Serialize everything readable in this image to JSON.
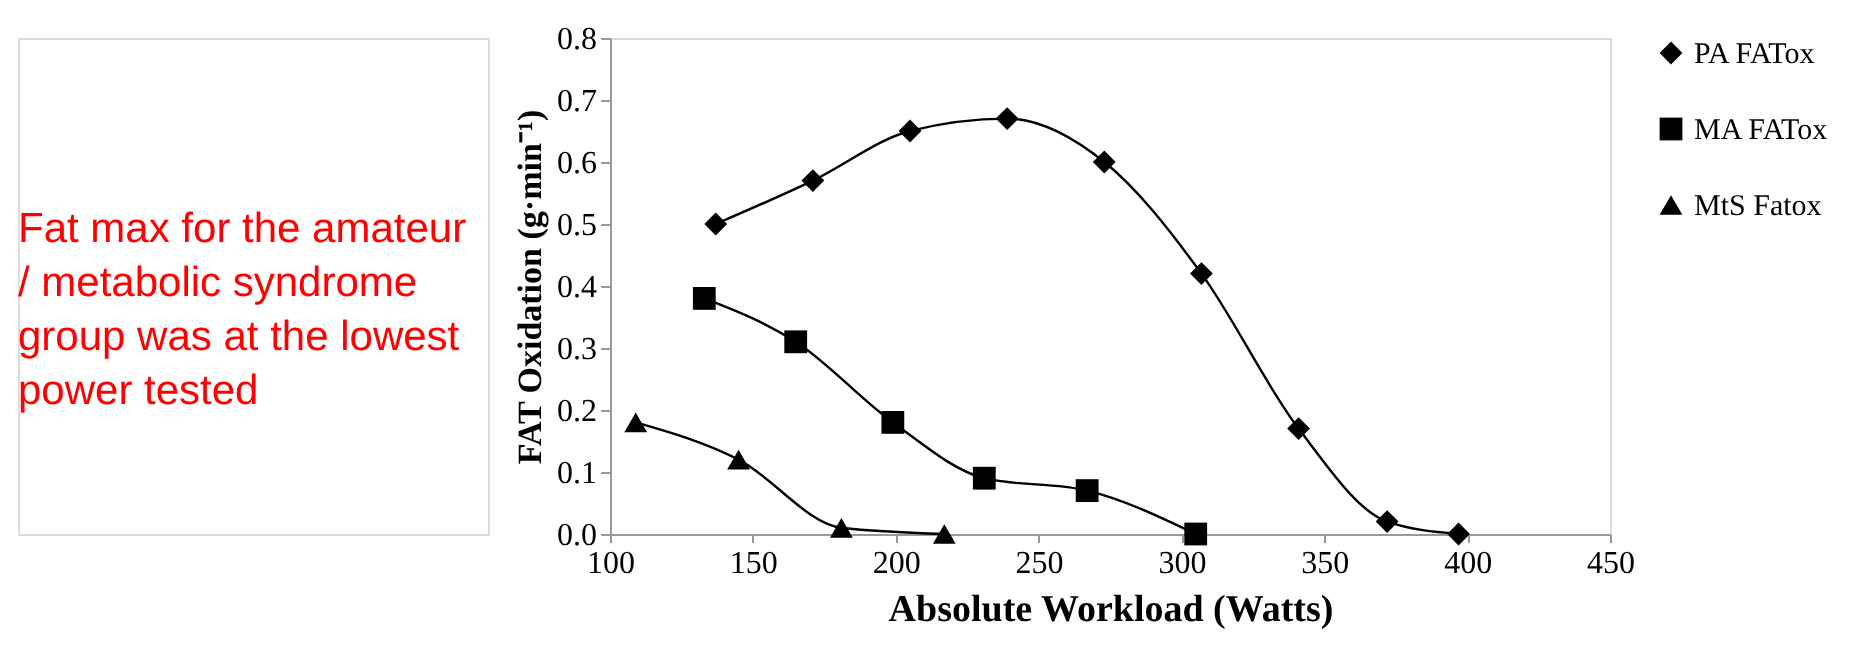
{
  "chart_data": {
    "type": "line",
    "xlabel": "Absolute Workload (Watts)",
    "ylabel": "FAT Oxidation (g·min⁻¹)",
    "annotations": [
      "Fat max for the amateur / metabolic syndrome group was at the lowest power tested"
    ],
    "series": [
      {
        "name": "PA FATox",
        "color": "#000000",
        "marker": "diamond",
        "x": [
          137,
          171,
          205,
          239,
          273,
          307,
          341,
          372,
          397
        ],
        "values": [
          0.5,
          0.57,
          0.65,
          0.67,
          0.6,
          0.42,
          0.17,
          0.02,
          0.0
        ]
      },
      {
        "name": "MA FATox",
        "color": "#000000",
        "marker": "square",
        "x": [
          133,
          165,
          199,
          231,
          267,
          305
        ],
        "values": [
          0.38,
          0.31,
          0.18,
          0.09,
          0.07,
          0.0
        ]
      },
      {
        "name": "MtS Fatox",
        "color": "#000000",
        "marker": "triangle",
        "x": [
          109,
          145,
          181,
          217
        ],
        "values": [
          0.18,
          0.12,
          0.01,
          0.0
        ]
      }
    ],
    "xlim": [
      100,
      450
    ],
    "xticks": [
      100,
      150,
      200,
      250,
      300,
      350,
      400,
      450
    ],
    "ylim": [
      0,
      0.8
    ],
    "yticks": [
      {
        "value": 0,
        "label": "0.0"
      },
      0.1,
      0.2,
      0.3,
      0.4,
      0.5,
      0.6,
      0.7,
      0.8
    ],
    "grid": false,
    "legend": "right",
    "line_style": "solid"
  }
}
